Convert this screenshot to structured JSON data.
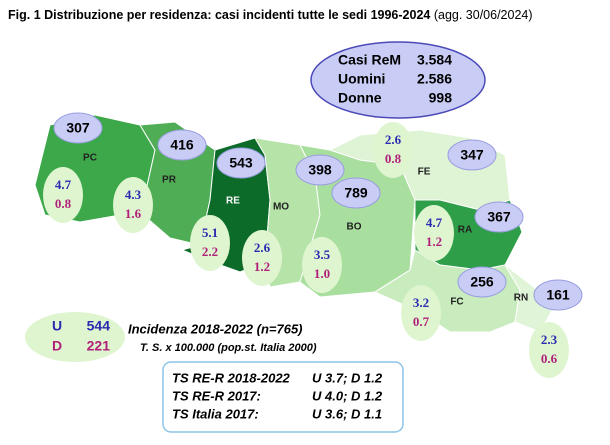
{
  "title": "Fig. 1  Distribuzione per  residenza: casi incidenti tutte le sedi 1996-2024",
  "title_note": "(agg. 30/06/2024)",
  "summary": [
    {
      "label": "Casi ReM",
      "value": "3.584"
    },
    {
      "label": "Uomini",
      "value": "2.586"
    },
    {
      "label": "Donne",
      "value": "998"
    }
  ],
  "provinces": [
    {
      "code": "PC",
      "cases": "307",
      "rate_m": "4.7",
      "rate_f": "0.8"
    },
    {
      "code": "PR",
      "cases": "416",
      "rate_m": "4.3",
      "rate_f": "1.6"
    },
    {
      "code": "RE",
      "cases": "543",
      "rate_m": "5.1",
      "rate_f": "2.2"
    },
    {
      "code": "MO",
      "cases": "398",
      "rate_m": "2.6",
      "rate_f": "1.2"
    },
    {
      "code": "BO",
      "cases": "789",
      "rate_m": "3.5",
      "rate_f": "1.0"
    },
    {
      "code": "FE",
      "cases": "347",
      "rate_m": "2.6",
      "rate_f": "0.8"
    },
    {
      "code": "RA",
      "cases": "367",
      "rate_m": "4.7",
      "rate_f": "1.2"
    },
    {
      "code": "FC",
      "cases": "256",
      "rate_m": "3.2",
      "rate_f": "0.7"
    },
    {
      "code": "RN",
      "cases": "161",
      "rate_m": "2.3",
      "rate_f": "0.6"
    }
  ],
  "incidence": {
    "title": "Incidenza 2018-2022 (n=765)",
    "subtitle": "T. S. x 100.000 (pop.st. Italia 2000)",
    "men_label": "U",
    "men": "544",
    "women_label": "D",
    "women": "221"
  },
  "ts_box": [
    {
      "label": "TS RE-R 2018-2022",
      "value": "U 3.7; D 1.2"
    },
    {
      "label": "TS RE-R 2017:",
      "value": "U 4.0; D 1.2"
    },
    {
      "label": "TS Italia 2017:",
      "value": "U 3.6; D 1.1"
    }
  ]
}
